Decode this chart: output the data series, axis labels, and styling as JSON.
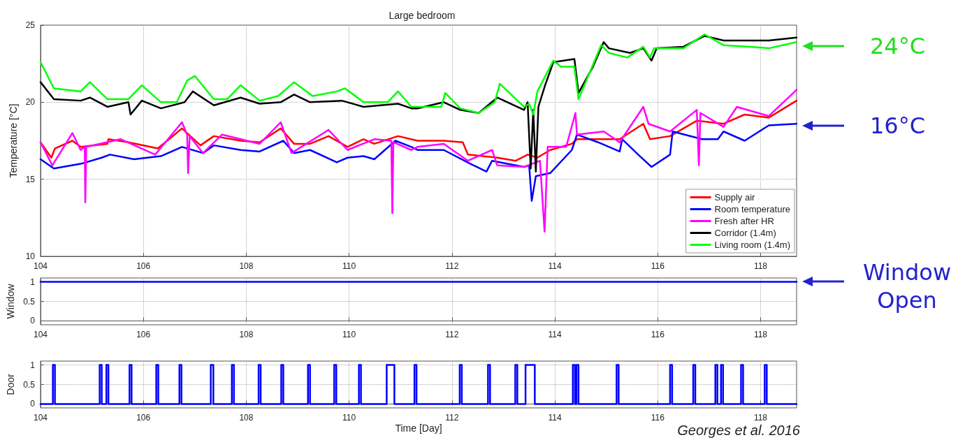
{
  "chart_data": [
    {
      "type": "line",
      "title": "Large bedroom",
      "ylabel": "Temperature [°C]",
      "xlim": [
        104,
        118.7
      ],
      "ylim": [
        10,
        25
      ],
      "xticks": [
        104,
        106,
        108,
        110,
        112,
        114,
        116,
        118
      ],
      "yticks": [
        10,
        15,
        20,
        25
      ],
      "grid": true,
      "legend": "bottom right",
      "marker": "none",
      "line_style": "solid",
      "annotations": [
        "24°C",
        "16°C"
      ],
      "series": [
        {
          "name": "Supply air",
          "color": "#ff0000",
          "x": [
            104,
            104.21,
            104.28,
            104.62,
            104.78,
            105.3,
            105.32,
            105.71,
            106.28,
            106.75,
            107.11,
            107.37,
            107.89,
            108.26,
            108.67,
            108.93,
            109.24,
            109.6,
            109.97,
            110.28,
            110.49,
            110.95,
            111.33,
            111.84,
            112.21,
            112.31,
            112.88,
            113.24,
            113.47,
            113.66,
            113.91,
            114.33,
            114.43,
            115.26,
            115.72,
            115.85,
            116.24,
            116.76,
            117.28,
            117.69,
            118.16,
            118.7
          ],
          "values": [
            17.4,
            16.4,
            17.0,
            17.5,
            17.1,
            17.3,
            17.6,
            17.4,
            17.0,
            18.3,
            17.2,
            17.8,
            17.5,
            17.4,
            18.3,
            17.3,
            17.3,
            17.8,
            17.1,
            17.6,
            17.3,
            17.8,
            17.5,
            17.5,
            17.4,
            16.6,
            16.4,
            16.2,
            16.6,
            16.4,
            16.9,
            17.3,
            17.6,
            17.6,
            18.6,
            17.6,
            17.8,
            18.8,
            18.6,
            19.2,
            19.0,
            20.1
          ]
        },
        {
          "name": "Room temperature",
          "color": "#0000ff",
          "x": [
            104,
            104.26,
            104.78,
            105.19,
            105.35,
            105.82,
            106.34,
            106.75,
            107.16,
            107.37,
            107.89,
            108.26,
            108.72,
            108.93,
            109.24,
            109.76,
            109.97,
            110.28,
            110.49,
            110.9,
            111.21,
            111.33,
            111.84,
            112.36,
            112.67,
            112.78,
            113.4,
            113.5,
            113.55,
            113.63,
            113.91,
            114.33,
            114.43,
            114.84,
            115.26,
            115.31,
            115.62,
            115.88,
            116.24,
            116.29,
            116.86,
            117.17,
            117.28,
            117.69,
            118.16,
            118.7
          ],
          "values": [
            16.3,
            15.7,
            16.0,
            16.4,
            16.6,
            16.3,
            16.5,
            17.1,
            16.7,
            17.2,
            16.9,
            16.8,
            17.5,
            16.7,
            16.9,
            16.1,
            16.4,
            16.5,
            16.3,
            17.5,
            17.1,
            16.9,
            16.9,
            16.0,
            15.5,
            16.2,
            15.8,
            15.9,
            13.6,
            15.2,
            15.4,
            16.9,
            17.9,
            17.4,
            16.8,
            17.6,
            16.6,
            15.8,
            16.6,
            18.1,
            17.6,
            17.6,
            18.1,
            17.5,
            18.5,
            18.6
          ]
        },
        {
          "name": "Fresh after HR",
          "color": "#ff00ff",
          "x": [
            104,
            104.23,
            104.62,
            104.78,
            104.86,
            104.87,
            104.89,
            105.56,
            106.23,
            106.75,
            106.85,
            106.87,
            106.9,
            107.16,
            107.53,
            108.26,
            108.67,
            108.88,
            109.6,
            109.97,
            110.49,
            110.82,
            110.84,
            110.86,
            111.21,
            111.33,
            111.84,
            112.31,
            112.78,
            112.88,
            113.4,
            113.71,
            113.8,
            113.86,
            114.22,
            114.4,
            114.43,
            114.95,
            115.26,
            115.72,
            115.82,
            116.24,
            116.76,
            116.8,
            116.83,
            117.28,
            117.54,
            118.16,
            118.7
          ],
          "values": [
            17.4,
            15.9,
            18.0,
            16.9,
            17.1,
            13.5,
            17.1,
            17.6,
            16.6,
            18.7,
            17.9,
            15.4,
            17.8,
            16.7,
            17.9,
            17.3,
            18.7,
            16.7,
            18.2,
            16.9,
            17.6,
            17.5,
            12.8,
            17.4,
            16.9,
            17.1,
            17.3,
            16.2,
            16.9,
            15.9,
            15.8,
            16.2,
            11.6,
            17.1,
            17.1,
            19.3,
            17.9,
            18.1,
            17.4,
            19.7,
            18.6,
            18.1,
            19.5,
            15.9,
            19.3,
            18.4,
            19.7,
            19.1,
            20.8
          ]
        },
        {
          "name": "Corridor (1.4m)",
          "color": "#000000",
          "x": [
            104,
            104.26,
            104.78,
            104.96,
            105.3,
            105.71,
            105.75,
            105.97,
            106.34,
            106.8,
            106.96,
            107.37,
            107.89,
            108.26,
            108.67,
            108.93,
            109.24,
            109.86,
            110.28,
            110.95,
            111.21,
            111.33,
            111.84,
            112.16,
            112.52,
            112.88,
            113.4,
            113.47,
            113.53,
            113.58,
            113.63,
            113.68,
            113.81,
            113.97,
            114.38,
            114.46,
            114.74,
            114.95,
            115.05,
            115.46,
            115.72,
            115.88,
            115.98,
            116.5,
            116.91,
            117.28,
            117.79,
            118.16,
            118.7
          ],
          "values": [
            21.3,
            20.2,
            20.1,
            20.3,
            19.7,
            20.0,
            19.2,
            20.1,
            19.6,
            20.0,
            20.7,
            19.8,
            20.3,
            19.9,
            20.0,
            20.5,
            20.0,
            20.1,
            19.7,
            19.9,
            19.6,
            19.6,
            20.0,
            19.5,
            19.3,
            20.3,
            19.5,
            20.0,
            15.7,
            19.5,
            15.5,
            19.7,
            21.1,
            22.6,
            22.8,
            20.6,
            22.3,
            23.9,
            23.5,
            23.2,
            23.5,
            22.7,
            23.5,
            23.6,
            24.3,
            24.0,
            24.0,
            24.0,
            24.2
          ]
        },
        {
          "name": "Living room (1.4m)",
          "color": "#00ff00",
          "x": [
            104,
            104.26,
            104.78,
            104.96,
            105.3,
            105.71,
            105.97,
            106.34,
            106.65,
            106.85,
            107,
            107.37,
            107.63,
            107.89,
            108.26,
            108.62,
            108.93,
            109.29,
            109.76,
            109.92,
            110.28,
            110.75,
            110.95,
            111.21,
            111.33,
            111.79,
            111.87,
            112.16,
            112.52,
            112.83,
            112.93,
            113.4,
            113.5,
            113.58,
            113.66,
            113.97,
            114.12,
            114.38,
            114.46,
            114.9,
            115.05,
            115.41,
            115.72,
            115.85,
            115.93,
            116.5,
            116.91,
            117.28,
            117.79,
            118.16,
            118.7
          ],
          "values": [
            22.6,
            20.9,
            20.7,
            21.3,
            20.2,
            20.2,
            21.1,
            20.0,
            20.0,
            21.4,
            21.7,
            20.2,
            20.2,
            21.1,
            20.1,
            20.4,
            21.3,
            20.4,
            20.7,
            20.9,
            20.0,
            20.0,
            20.7,
            19.7,
            19.7,
            19.7,
            20.6,
            19.6,
            19.3,
            20.0,
            21.2,
            19.7,
            19.9,
            19.2,
            20.7,
            22.7,
            22.3,
            22.3,
            20.2,
            23.7,
            23.2,
            22.9,
            23.6,
            22.9,
            23.5,
            23.5,
            24.4,
            23.7,
            23.6,
            23.5,
            23.9
          ]
        }
      ]
    },
    {
      "type": "line",
      "ylabel": "Window",
      "xlim": [
        104,
        118.7
      ],
      "ylim": [
        -0.1,
        1.1
      ],
      "xticks": [
        104,
        106,
        108,
        110,
        112,
        114,
        116,
        118
      ],
      "yticks": [
        0,
        0.5,
        1
      ],
      "grid": true,
      "marker": "none",
      "line_style": "solid",
      "annotations": [
        "Window Open"
      ],
      "series": [
        {
          "color": "#0000ff",
          "x": [
            104,
            118.7
          ],
          "values": [
            1,
            1
          ]
        }
      ]
    },
    {
      "type": "step",
      "ylabel": "Door",
      "xlabel": "Time [Day]",
      "xlim": [
        104,
        118.7
      ],
      "ylim": [
        -0.1,
        1.1
      ],
      "xticks": [
        104,
        106,
        108,
        110,
        112,
        114,
        116,
        118
      ],
      "yticks": [
        0,
        0.5,
        1
      ],
      "grid": true,
      "marker": "none",
      "line_style": "solid",
      "annotations": [
        "Georges et al. 2016"
      ],
      "series": [
        {
          "color": "#0000ff",
          "x": [
            104,
            104.24,
            104.28,
            105.15,
            105.19,
            105.28,
            105.32,
            105.73,
            105.77,
            106.25,
            106.29,
            106.7,
            106.74,
            107.31,
            107.36,
            107.72,
            107.76,
            108.24,
            108.28,
            108.68,
            108.72,
            109.2,
            109.24,
            109.71,
            109.75,
            110.19,
            110.23,
            110.73,
            110.88,
            111.27,
            111.31,
            112.15,
            112.19,
            112.7,
            112.74,
            113.23,
            113.27,
            113.43,
            113.61,
            114.35,
            114.39,
            114.42,
            114.46,
            115.2,
            115.24,
            116.24,
            116.28,
            116.69,
            116.73,
            117.12,
            117.16,
            117.23,
            117.27,
            117.62,
            117.66,
            118.08,
            118.12,
            118.7
          ],
          "values": [
            0,
            1,
            0,
            1,
            0,
            1,
            0,
            1,
            0,
            1,
            0,
            1,
            0,
            1,
            0,
            1,
            0,
            1,
            0,
            1,
            0,
            1,
            0,
            1,
            0,
            1,
            0,
            1,
            0,
            1,
            0,
            1,
            0,
            1,
            0,
            1,
            0,
            1,
            0,
            1,
            0,
            1,
            0,
            1,
            0,
            1,
            0,
            1,
            0,
            1,
            0,
            1,
            0,
            1,
            0,
            1,
            0,
            0
          ]
        }
      ]
    }
  ]
}
